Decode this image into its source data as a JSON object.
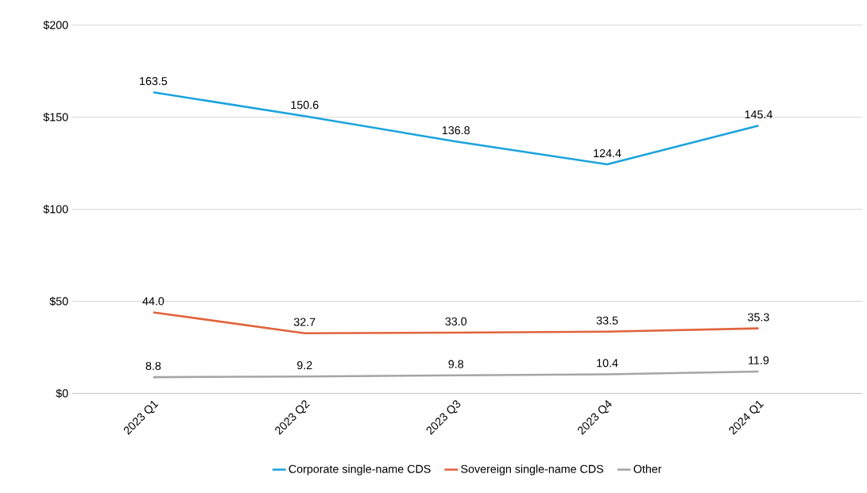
{
  "chart_data": {
    "type": "line",
    "categories": [
      "2023 Q1",
      "2023 Q2",
      "2023 Q3",
      "2023 Q4",
      "2024 Q1"
    ],
    "series": [
      {
        "name": "Corporate single-name CDS",
        "color": "#1ba3dc",
        "values": [
          163.5,
          150.6,
          136.8,
          124.4,
          145.4
        ],
        "value_labels": [
          "163.5",
          "150.6",
          "136.8",
          "124.4",
          "145.4"
        ]
      },
      {
        "name": "Sovereign single-name CDS",
        "color": "#e0643c",
        "values": [
          44.0,
          32.7,
          33.0,
          33.5,
          35.3
        ],
        "value_labels": [
          "44.0",
          "32.7",
          "33.0",
          "33.5",
          "35.3"
        ]
      },
      {
        "name": "Other",
        "color": "#a5a5a5",
        "values": [
          8.8,
          9.2,
          9.8,
          10.4,
          11.9
        ],
        "value_labels": [
          "8.8",
          "9.2",
          "9.8",
          "10.4",
          "11.9"
        ]
      }
    ],
    "ylim": [
      0,
      200
    ],
    "yticks": [
      {
        "value": 0,
        "label": "$0"
      },
      {
        "value": 50,
        "label": "$50"
      },
      {
        "value": 100,
        "label": "$100"
      },
      {
        "value": 150,
        "label": "$150"
      },
      {
        "value": 200,
        "label": "$200"
      }
    ],
    "grid": "y",
    "legend": "bottom"
  }
}
